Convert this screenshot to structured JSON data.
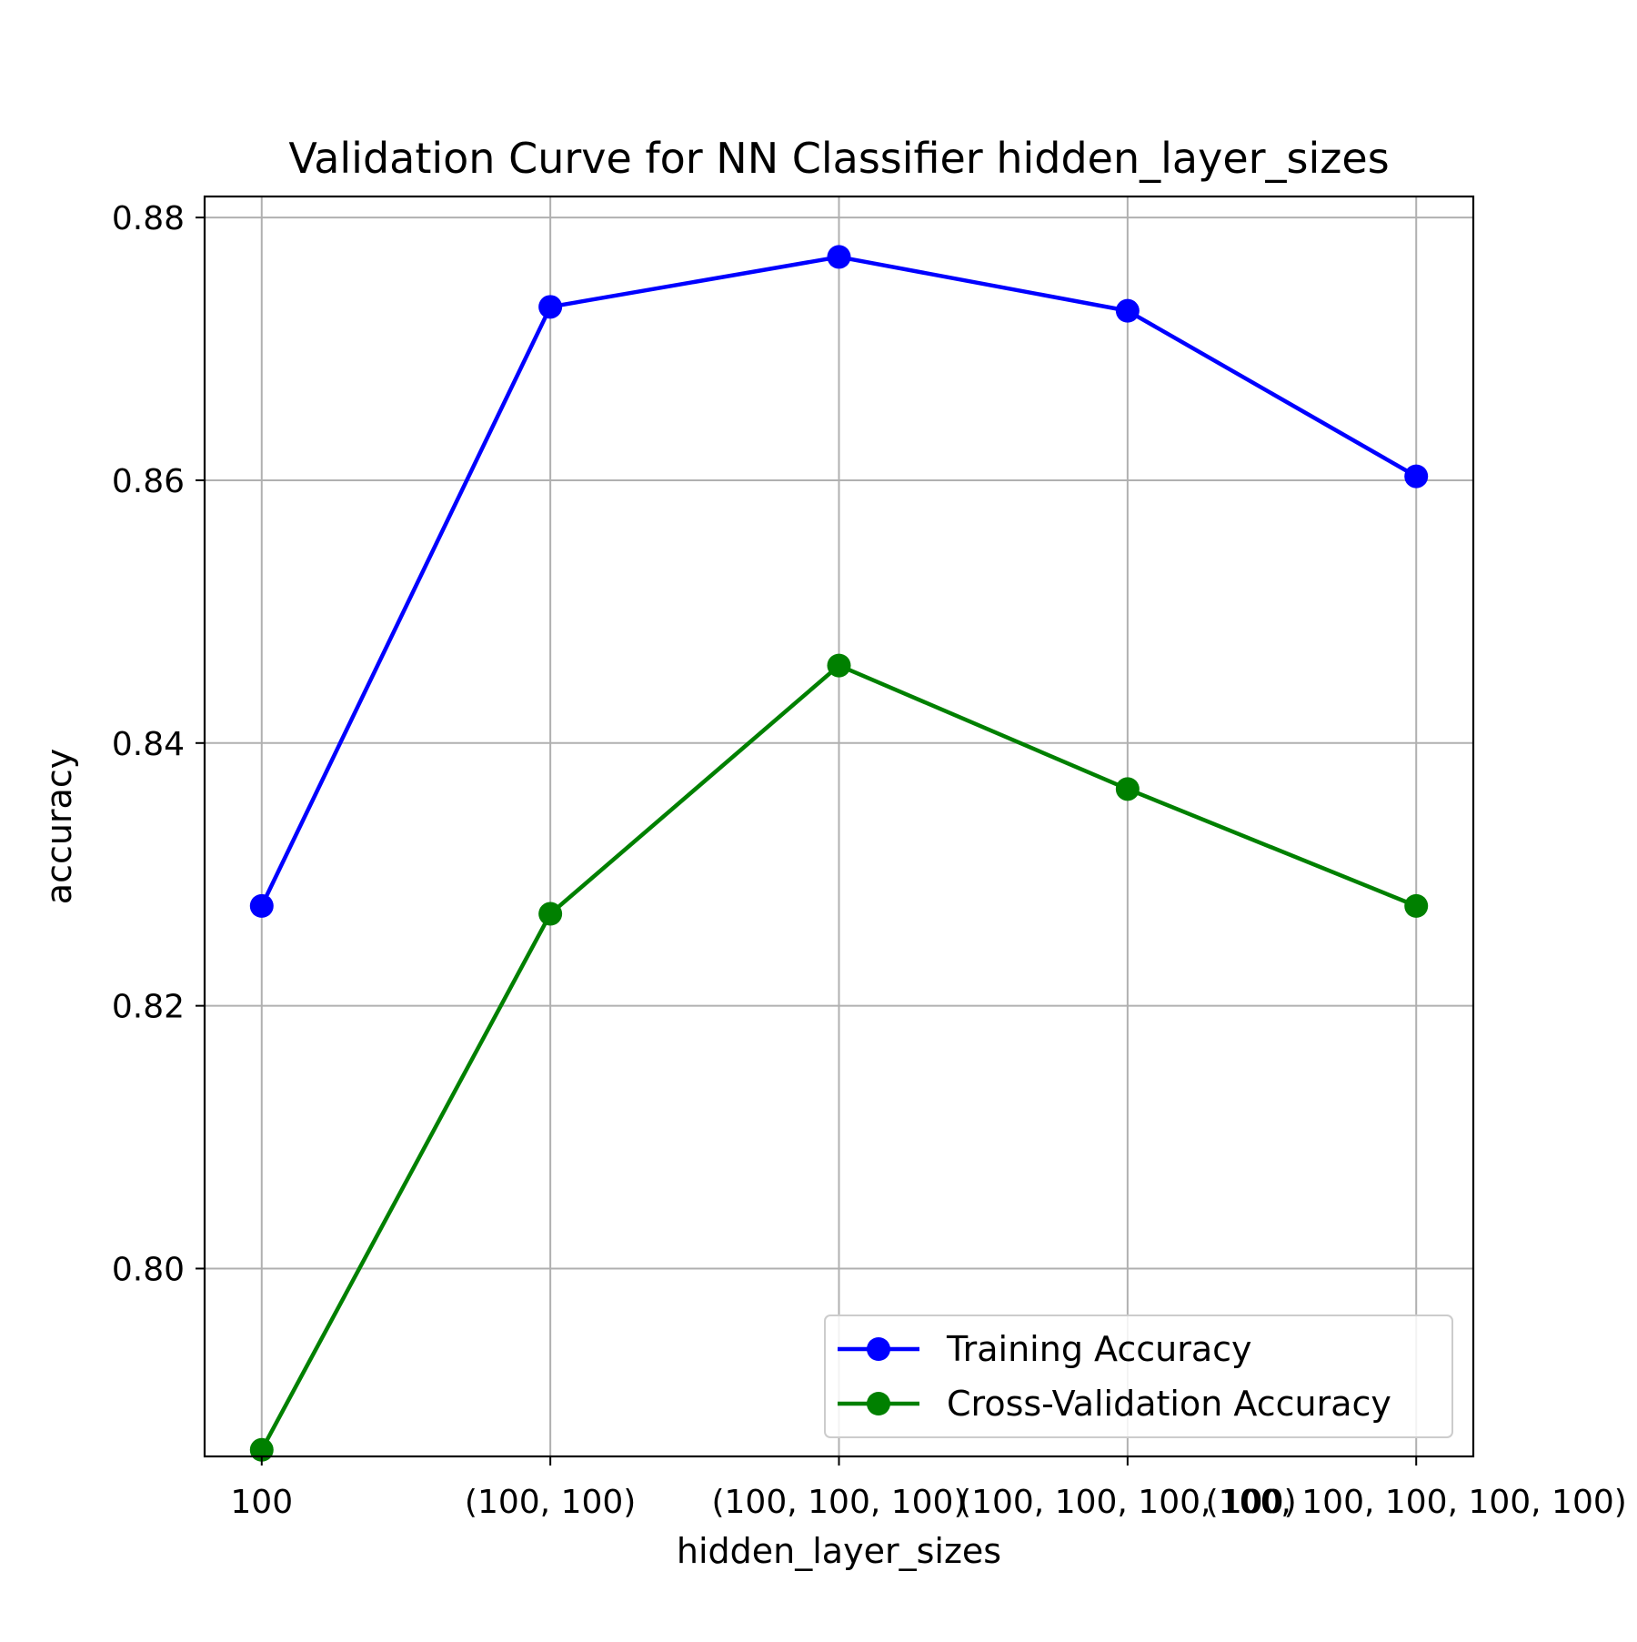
{
  "chart_data": {
    "type": "line",
    "title": "Validation Curve for NN Classifier hidden_layer_sizes",
    "xlabel": "hidden_layer_sizes",
    "ylabel": "accuracy",
    "categories": [
      "100",
      "(100, 100)",
      "(100, 100, 100)",
      "(100, 100, 100, 100)",
      "(100, 100, 100, 100, 100)"
    ],
    "ylim": [
      0.7857,
      0.8816
    ],
    "yticks": [
      0.8,
      0.82,
      0.84,
      0.86,
      0.88
    ],
    "ytick_labels": [
      "0.80",
      "0.82",
      "0.84",
      "0.86",
      "0.88"
    ],
    "grid": true,
    "legend_position": "lower-right",
    "series": [
      {
        "name": "Training Accuracy",
        "color": "#0000ff",
        "marker": "circle",
        "values": [
          0.8276,
          0.8732,
          0.877,
          0.8729,
          0.8603
        ]
      },
      {
        "name": "Cross-Validation Accuracy",
        "color": "#008000",
        "marker": "circle",
        "values": [
          0.7862,
          0.827,
          0.8459,
          0.8365,
          0.8276
        ]
      }
    ]
  }
}
